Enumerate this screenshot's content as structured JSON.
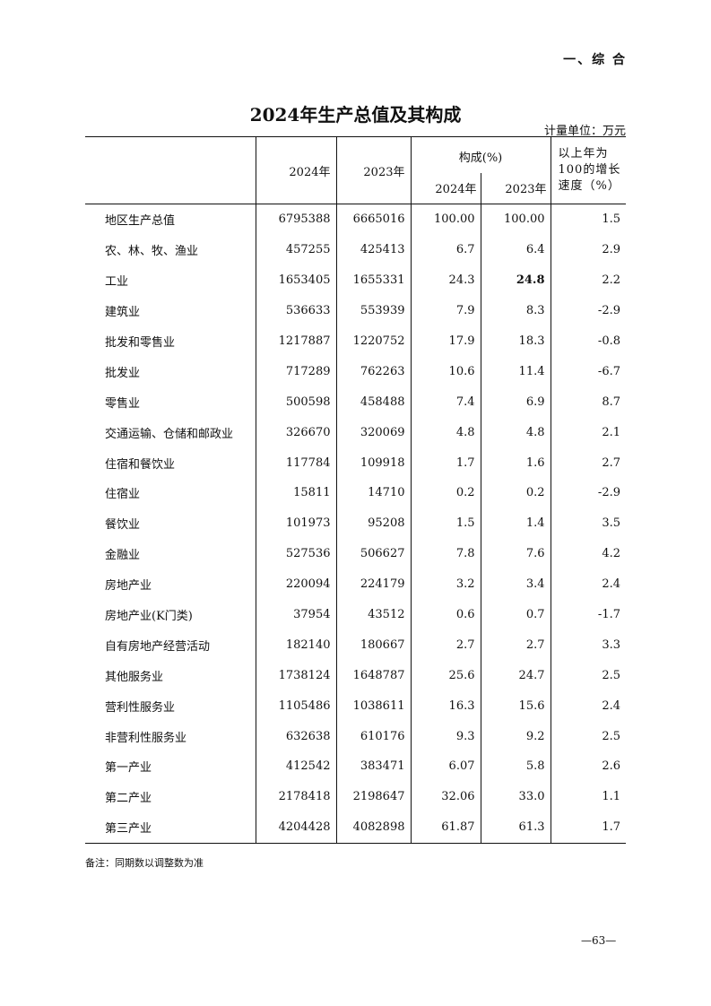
{
  "section": "一、综 合",
  "title": "2024年生产总值及其构成",
  "unit": "计量单位：万元",
  "headers": {
    "col_2024": "2024年",
    "col_2023": "2023年",
    "composition": "构成(%)",
    "comp_2024": "2024年",
    "comp_2023": "2023年",
    "growth_l1": "以上年为",
    "growth_l2": "100的增长",
    "growth_l3": "速度（%）"
  },
  "rows": [
    [
      "地区生产总值",
      "6795388",
      "6665016",
      "100.00",
      "100.00",
      "1.5"
    ],
    [
      "农、林、牧、渔业",
      "457255",
      "425413",
      "6.7",
      "6.4",
      "2.9"
    ],
    [
      "工业",
      "1653405",
      "1655331",
      "24.3",
      "24.8",
      "2.2"
    ],
    [
      "建筑业",
      "536633",
      "553939",
      "7.9",
      "8.3",
      "-2.9"
    ],
    [
      "批发和零售业",
      "1217887",
      "1220752",
      "17.9",
      "18.3",
      "-0.8"
    ],
    [
      "批发业",
      "717289",
      "762263",
      "10.6",
      "11.4",
      "-6.7"
    ],
    [
      "零售业",
      "500598",
      "458488",
      "7.4",
      "6.9",
      "8.7"
    ],
    [
      "交通运输、仓储和邮政业",
      "326670",
      "320069",
      "4.8",
      "4.8",
      "2.1"
    ],
    [
      "住宿和餐饮业",
      "117784",
      "109918",
      "1.7",
      "1.6",
      "2.7"
    ],
    [
      "住宿业",
      "15811",
      "14710",
      "0.2",
      "0.2",
      "-2.9"
    ],
    [
      "餐饮业",
      "101973",
      "95208",
      "1.5",
      "1.4",
      "3.5"
    ],
    [
      "金融业",
      "527536",
      "506627",
      "7.8",
      "7.6",
      "4.2"
    ],
    [
      "房地产业",
      "220094",
      "224179",
      "3.2",
      "3.4",
      "2.4"
    ],
    [
      "房地产业(K门类)",
      "37954",
      "43512",
      "0.6",
      "0.7",
      "-1.7"
    ],
    [
      "自有房地产经营活动",
      "182140",
      "180667",
      "2.7",
      "2.7",
      "3.3"
    ],
    [
      "其他服务业",
      "1738124",
      "1648787",
      "25.6",
      "24.7",
      "2.5"
    ],
    [
      "营利性服务业",
      "1105486",
      "1038611",
      "16.3",
      "15.6",
      "2.4"
    ],
    [
      "非营利性服务业",
      "632638",
      "610176",
      "9.3",
      "9.2",
      "2.5"
    ],
    [
      "第一产业",
      "412542",
      "383471",
      "6.07",
      "5.8",
      "2.6"
    ],
    [
      "第二产业",
      "2178418",
      "2198647",
      "32.06",
      "33.0",
      "1.1"
    ],
    [
      "第三产业",
      "4204428",
      "4082898",
      "61.87",
      "61.3",
      "1.7"
    ]
  ],
  "note": "备注：同期数以调整数为准",
  "page_number": "—63—"
}
